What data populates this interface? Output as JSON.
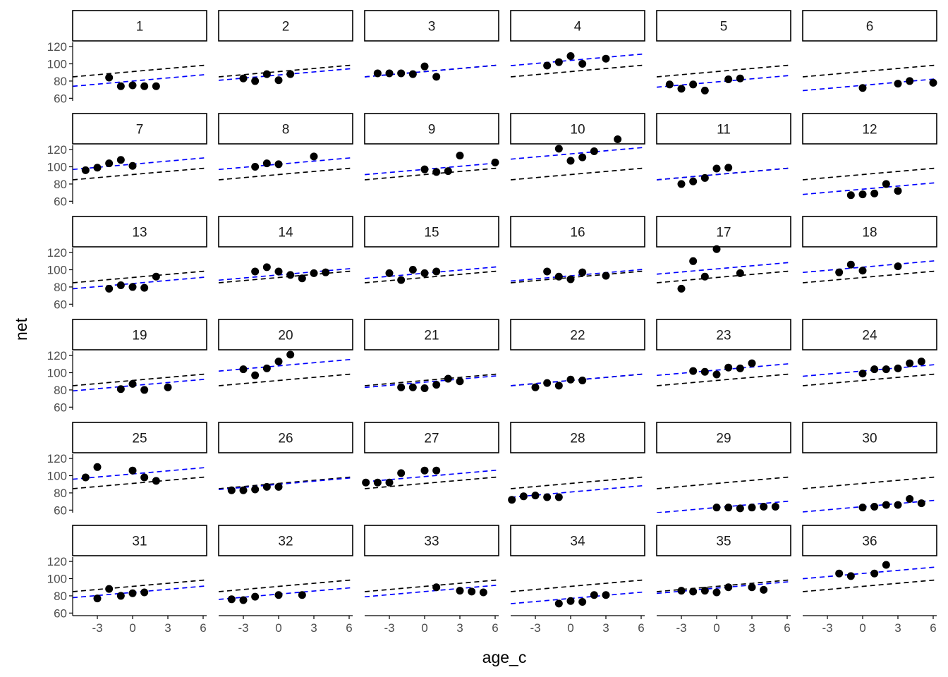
{
  "chart_data": {
    "type": "scatter",
    "facet_type": "wrap",
    "grid": false,
    "xlabel": "age_c",
    "ylabel": "net",
    "xlim": [
      -5.1,
      6.3
    ],
    "ylim": [
      57,
      125
    ],
    "x_ticks": [
      -3,
      0,
      3,
      6
    ],
    "x_tick_labels": [
      "-3",
      "0",
      "3",
      "6"
    ],
    "y_ticks": [
      60,
      80,
      100,
      120
    ],
    "y_tick_labels": [
      "60",
      "80",
      "100",
      "120"
    ],
    "population_line": {
      "color": "#000000",
      "dash": "dashed",
      "intercept": 91,
      "slope": 1.2
    },
    "subject_line_color": "#0000ff",
    "point_color": "#000000",
    "facets": [
      {
        "label": "1",
        "intercept": 80,
        "slope": 1.2,
        "points": [
          [
            -2,
            84
          ],
          [
            -1,
            74
          ],
          [
            0,
            75
          ],
          [
            1,
            74
          ],
          [
            2,
            74
          ]
        ]
      },
      {
        "label": "2",
        "intercept": 87,
        "slope": 1.2,
        "points": [
          [
            -3,
            83
          ],
          [
            -2,
            80
          ],
          [
            -1,
            88
          ],
          [
            0,
            81
          ],
          [
            1,
            88
          ]
        ]
      },
      {
        "label": "3",
        "intercept": 91,
        "slope": 1.2,
        "points": [
          [
            -4,
            89
          ],
          [
            -3,
            89
          ],
          [
            -2,
            89
          ],
          [
            -1,
            88
          ],
          [
            0,
            97
          ],
          [
            1,
            85
          ]
        ]
      },
      {
        "label": "4",
        "intercept": 104,
        "slope": 1.2,
        "points": [
          [
            -2,
            98
          ],
          [
            -1,
            102
          ],
          [
            0,
            109
          ],
          [
            1,
            100
          ],
          [
            3,
            106
          ]
        ]
      },
      {
        "label": "5",
        "intercept": 79,
        "slope": 1.2,
        "points": [
          [
            -4,
            76
          ],
          [
            -3,
            71
          ],
          [
            -2,
            76
          ],
          [
            -1,
            69
          ],
          [
            1,
            82
          ],
          [
            2,
            83
          ]
        ]
      },
      {
        "label": "6",
        "intercept": 75,
        "slope": 1.2,
        "points": [
          [
            0,
            72
          ],
          [
            3,
            77
          ],
          [
            4,
            80
          ],
          [
            6,
            78
          ]
        ]
      },
      {
        "label": "7",
        "intercept": 103,
        "slope": 1.2,
        "points": [
          [
            -4,
            96
          ],
          [
            -3,
            99
          ],
          [
            -2,
            104
          ],
          [
            -1,
            108
          ],
          [
            0,
            101
          ]
        ]
      },
      {
        "label": "8",
        "intercept": 103,
        "slope": 1.2,
        "points": [
          [
            -2,
            100
          ],
          [
            -1,
            104
          ],
          [
            0,
            103
          ],
          [
            3,
            112
          ]
        ]
      },
      {
        "label": "9",
        "intercept": 97,
        "slope": 1.2,
        "points": [
          [
            0,
            97
          ],
          [
            1,
            94
          ],
          [
            2,
            95
          ],
          [
            3,
            113
          ],
          [
            6,
            105
          ]
        ]
      },
      {
        "label": "10",
        "intercept": 115,
        "slope": 1.2,
        "points": [
          [
            -1,
            121
          ],
          [
            0,
            107
          ],
          [
            1,
            111
          ],
          [
            2,
            118
          ],
          [
            4,
            132
          ]
        ]
      },
      {
        "label": "11",
        "intercept": 91,
        "slope": 1.2,
        "points": [
          [
            -3,
            80
          ],
          [
            -2,
            83
          ],
          [
            -1,
            87
          ],
          [
            0,
            98
          ],
          [
            1,
            99
          ]
        ]
      },
      {
        "label": "12",
        "intercept": 74,
        "slope": 1.2,
        "points": [
          [
            -1,
            67
          ],
          [
            0,
            68
          ],
          [
            1,
            69
          ],
          [
            2,
            80
          ],
          [
            3,
            72
          ]
        ]
      },
      {
        "label": "13",
        "intercept": 84,
        "slope": 1.2,
        "points": [
          [
            -2,
            78
          ],
          [
            -1,
            82
          ],
          [
            0,
            80
          ],
          [
            1,
            79
          ],
          [
            2,
            92
          ]
        ]
      },
      {
        "label": "14",
        "intercept": 94,
        "slope": 1.2,
        "points": [
          [
            -2,
            98
          ],
          [
            -1,
            103
          ],
          [
            0,
            98
          ],
          [
            1,
            94
          ],
          [
            2,
            90
          ],
          [
            3,
            96
          ],
          [
            4,
            97
          ]
        ]
      },
      {
        "label": "15",
        "intercept": 96,
        "slope": 1.2,
        "points": [
          [
            -3,
            96
          ],
          [
            -2,
            88
          ],
          [
            -1,
            100
          ],
          [
            0,
            96
          ],
          [
            1,
            98
          ]
        ]
      },
      {
        "label": "16",
        "intercept": 93,
        "slope": 1.2,
        "points": [
          [
            -2,
            98
          ],
          [
            -1,
            92
          ],
          [
            0,
            89
          ],
          [
            1,
            97
          ],
          [
            3,
            93
          ]
        ]
      },
      {
        "label": "17",
        "intercept": 101,
        "slope": 1.2,
        "points": [
          [
            -3,
            78
          ],
          [
            -2,
            110
          ],
          [
            -1,
            92
          ],
          [
            0,
            124
          ],
          [
            2,
            96
          ]
        ]
      },
      {
        "label": "18",
        "intercept": 103,
        "slope": 1.2,
        "points": [
          [
            -2,
            97
          ],
          [
            -1,
            106
          ],
          [
            0,
            99
          ],
          [
            3,
            104
          ]
        ]
      },
      {
        "label": "19",
        "intercept": 85,
        "slope": 1.2,
        "points": [
          [
            -1,
            81
          ],
          [
            0,
            87
          ],
          [
            1,
            80
          ],
          [
            3,
            83
          ]
        ]
      },
      {
        "label": "20",
        "intercept": 108,
        "slope": 1.2,
        "points": [
          [
            -3,
            104
          ],
          [
            -2,
            97
          ],
          [
            -1,
            105
          ],
          [
            0,
            113
          ],
          [
            1,
            121
          ]
        ]
      },
      {
        "label": "21",
        "intercept": 89,
        "slope": 1.2,
        "points": [
          [
            -2,
            83
          ],
          [
            -1,
            83
          ],
          [
            0,
            82
          ],
          [
            1,
            86
          ],
          [
            2,
            93
          ],
          [
            3,
            90
          ]
        ]
      },
      {
        "label": "22",
        "intercept": 91,
        "slope": 1.2,
        "points": [
          [
            -3,
            83
          ],
          [
            -2,
            88
          ],
          [
            -1,
            85
          ],
          [
            0,
            92
          ],
          [
            1,
            91
          ]
        ]
      },
      {
        "label": "23",
        "intercept": 103,
        "slope": 1.2,
        "points": [
          [
            -2,
            102
          ],
          [
            -1,
            101
          ],
          [
            0,
            98
          ],
          [
            1,
            106
          ],
          [
            2,
            105
          ],
          [
            3,
            111
          ]
        ]
      },
      {
        "label": "24",
        "intercept": 102,
        "slope": 1.2,
        "points": [
          [
            0,
            99
          ],
          [
            1,
            104
          ],
          [
            2,
            104
          ],
          [
            3,
            105
          ],
          [
            4,
            111
          ],
          [
            5,
            113
          ]
        ]
      },
      {
        "label": "25",
        "intercept": 102,
        "slope": 1.2,
        "points": [
          [
            -4,
            98
          ],
          [
            -3,
            110
          ],
          [
            0,
            106
          ],
          [
            1,
            98
          ],
          [
            2,
            94
          ]
        ]
      },
      {
        "label": "26",
        "intercept": 90,
        "slope": 1.2,
        "points": [
          [
            -4,
            83
          ],
          [
            -3,
            83
          ],
          [
            -2,
            84
          ],
          [
            -1,
            87
          ],
          [
            0,
            87
          ]
        ]
      },
      {
        "label": "27",
        "intercept": 99,
        "slope": 1.2,
        "points": [
          [
            -5,
            92
          ],
          [
            -4,
            92
          ],
          [
            -3,
            92
          ],
          [
            -2,
            103
          ],
          [
            0,
            106
          ],
          [
            1,
            106
          ]
        ]
      },
      {
        "label": "28",
        "intercept": 81,
        "slope": 1.2,
        "points": [
          [
            -5,
            72
          ],
          [
            -4,
            76
          ],
          [
            -3,
            77
          ],
          [
            -2,
            75
          ],
          [
            -1,
            75
          ]
        ]
      },
      {
        "label": "29",
        "intercept": 63,
        "slope": 1.2,
        "points": [
          [
            0,
            63
          ],
          [
            1,
            63
          ],
          [
            2,
            62
          ],
          [
            3,
            63
          ],
          [
            4,
            64
          ],
          [
            5,
            64
          ]
        ]
      },
      {
        "label": "30",
        "intercept": 64,
        "slope": 1.2,
        "points": [
          [
            0,
            63
          ],
          [
            1,
            64
          ],
          [
            2,
            66
          ],
          [
            3,
            66
          ],
          [
            4,
            73
          ],
          [
            5,
            68
          ]
        ]
      },
      {
        "label": "31",
        "intercept": 84,
        "slope": 1.2,
        "points": [
          [
            -3,
            77
          ],
          [
            -2,
            88
          ],
          [
            -1,
            80
          ],
          [
            0,
            83
          ],
          [
            1,
            84
          ]
        ]
      },
      {
        "label": "32",
        "intercept": 82,
        "slope": 1.2,
        "points": [
          [
            -4,
            76
          ],
          [
            -3,
            75
          ],
          [
            -2,
            79
          ],
          [
            0,
            81
          ],
          [
            2,
            81
          ]
        ]
      },
      {
        "label": "33",
        "intercept": 85,
        "slope": 1.2,
        "points": [
          [
            1,
            90
          ],
          [
            3,
            86
          ],
          [
            4,
            85
          ],
          [
            5,
            84
          ]
        ]
      },
      {
        "label": "34",
        "intercept": 77,
        "slope": 1.2,
        "points": [
          [
            -1,
            71
          ],
          [
            0,
            74
          ],
          [
            1,
            73
          ],
          [
            2,
            81
          ],
          [
            3,
            81
          ]
        ]
      },
      {
        "label": "35",
        "intercept": 89,
        "slope": 1.2,
        "points": [
          [
            -3,
            86
          ],
          [
            -2,
            85
          ],
          [
            -1,
            86
          ],
          [
            0,
            84
          ],
          [
            1,
            90
          ],
          [
            3,
            90
          ],
          [
            4,
            87
          ]
        ]
      },
      {
        "label": "36",
        "intercept": 106,
        "slope": 1.2,
        "points": [
          [
            -2,
            106
          ],
          [
            -1,
            103
          ],
          [
            1,
            106
          ],
          [
            2,
            116
          ]
        ]
      }
    ]
  }
}
